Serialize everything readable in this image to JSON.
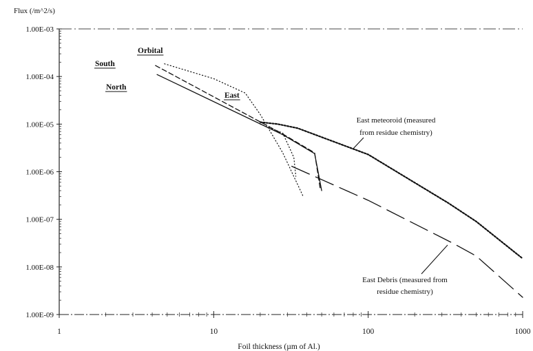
{
  "chart_data": {
    "type": "line",
    "ylabel": "Flux (/m^2/s)",
    "xlabel": "Foil thickness (µm of Al.)",
    "xscale": "log",
    "yscale": "log",
    "xlim": [
      1,
      1000
    ],
    "ylim": [
      1e-09,
      0.001
    ],
    "x_ticks": [
      {
        "value": 1,
        "label": "1"
      },
      {
        "value": 10,
        "label": "10"
      },
      {
        "value": 100,
        "label": "100"
      },
      {
        "value": 1000,
        "label": "1000"
      }
    ],
    "y_ticks": [
      {
        "value": 0.001,
        "label": "1.00E-03"
      },
      {
        "value": 0.0001,
        "label": "1.00E-04"
      },
      {
        "value": 1e-05,
        "label": "1.00E-05"
      },
      {
        "value": 1e-06,
        "label": "1.00E-06"
      },
      {
        "value": 1e-07,
        "label": "1.00E-07"
      },
      {
        "value": 1e-08,
        "label": "1.00E-08"
      },
      {
        "value": 1e-09,
        "label": "1.00E-09"
      }
    ],
    "grid": false,
    "series": [
      {
        "name": "North",
        "style": "solid",
        "width": 1.3,
        "points": [
          [
            4.3,
            0.00011
          ],
          [
            28,
            6e-06
          ],
          [
            45,
            2.4e-06
          ],
          [
            50,
            4e-07
          ]
        ]
      },
      {
        "name": "South",
        "style": "dashed",
        "width": 1.3,
        "points": [
          [
            4.2,
            0.00017
          ],
          [
            28,
            6.2e-06
          ],
          [
            45,
            2.5e-06
          ],
          [
            49,
            4.2e-07
          ]
        ]
      },
      {
        "name": "Orbital",
        "style": "dotted",
        "width": 1.2,
        "points": [
          [
            4.8,
            0.000185
          ],
          [
            10,
            9e-05
          ],
          [
            16,
            4.5e-05
          ],
          [
            20,
            1.6e-05
          ],
          [
            28,
            2.5e-06
          ],
          [
            38,
            3e-07
          ]
        ]
      },
      {
        "name": "East",
        "style": "dotted",
        "width": 1.2,
        "points": [
          [
            20,
            1e-05
          ],
          [
            28,
            6.5e-06
          ],
          [
            33,
            2e-06
          ],
          [
            34,
            8e-07
          ]
        ]
      },
      {
        "name": "East meteoroid (measured from residue chemistry)",
        "style": "dense-dotted",
        "width": 2.2,
        "points": [
          [
            20,
            1.1e-05
          ],
          [
            26,
            1e-05
          ],
          [
            35,
            8.2e-06
          ],
          [
            100,
            2.3e-06
          ],
          [
            330,
            2.2e-07
          ],
          [
            500,
            9e-08
          ],
          [
            1000,
            1.5e-08
          ]
        ]
      },
      {
        "name": "East Debris (measured from residue chemistry)",
        "style": "long-dash",
        "width": 1.3,
        "points": [
          [
            32,
            1.3e-06
          ],
          [
            100,
            2.5e-07
          ],
          [
            350,
            3.2e-08
          ],
          [
            500,
            1.7e-08
          ],
          [
            1000,
            2.3e-09
          ]
        ]
      }
    ],
    "annotations": [
      {
        "text": "Orbital",
        "underline": true
      },
      {
        "text": "South",
        "underline": true
      },
      {
        "text": "North",
        "underline": true
      },
      {
        "text": "East",
        "underline": true
      },
      {
        "text": "East meteoroid (measured",
        "leader": false
      },
      {
        "text": "from residue chemistry)",
        "leader": true
      },
      {
        "text": "East Debris (measured from",
        "leader": true
      },
      {
        "text": "residue chemistry)",
        "leader": false
      }
    ]
  }
}
